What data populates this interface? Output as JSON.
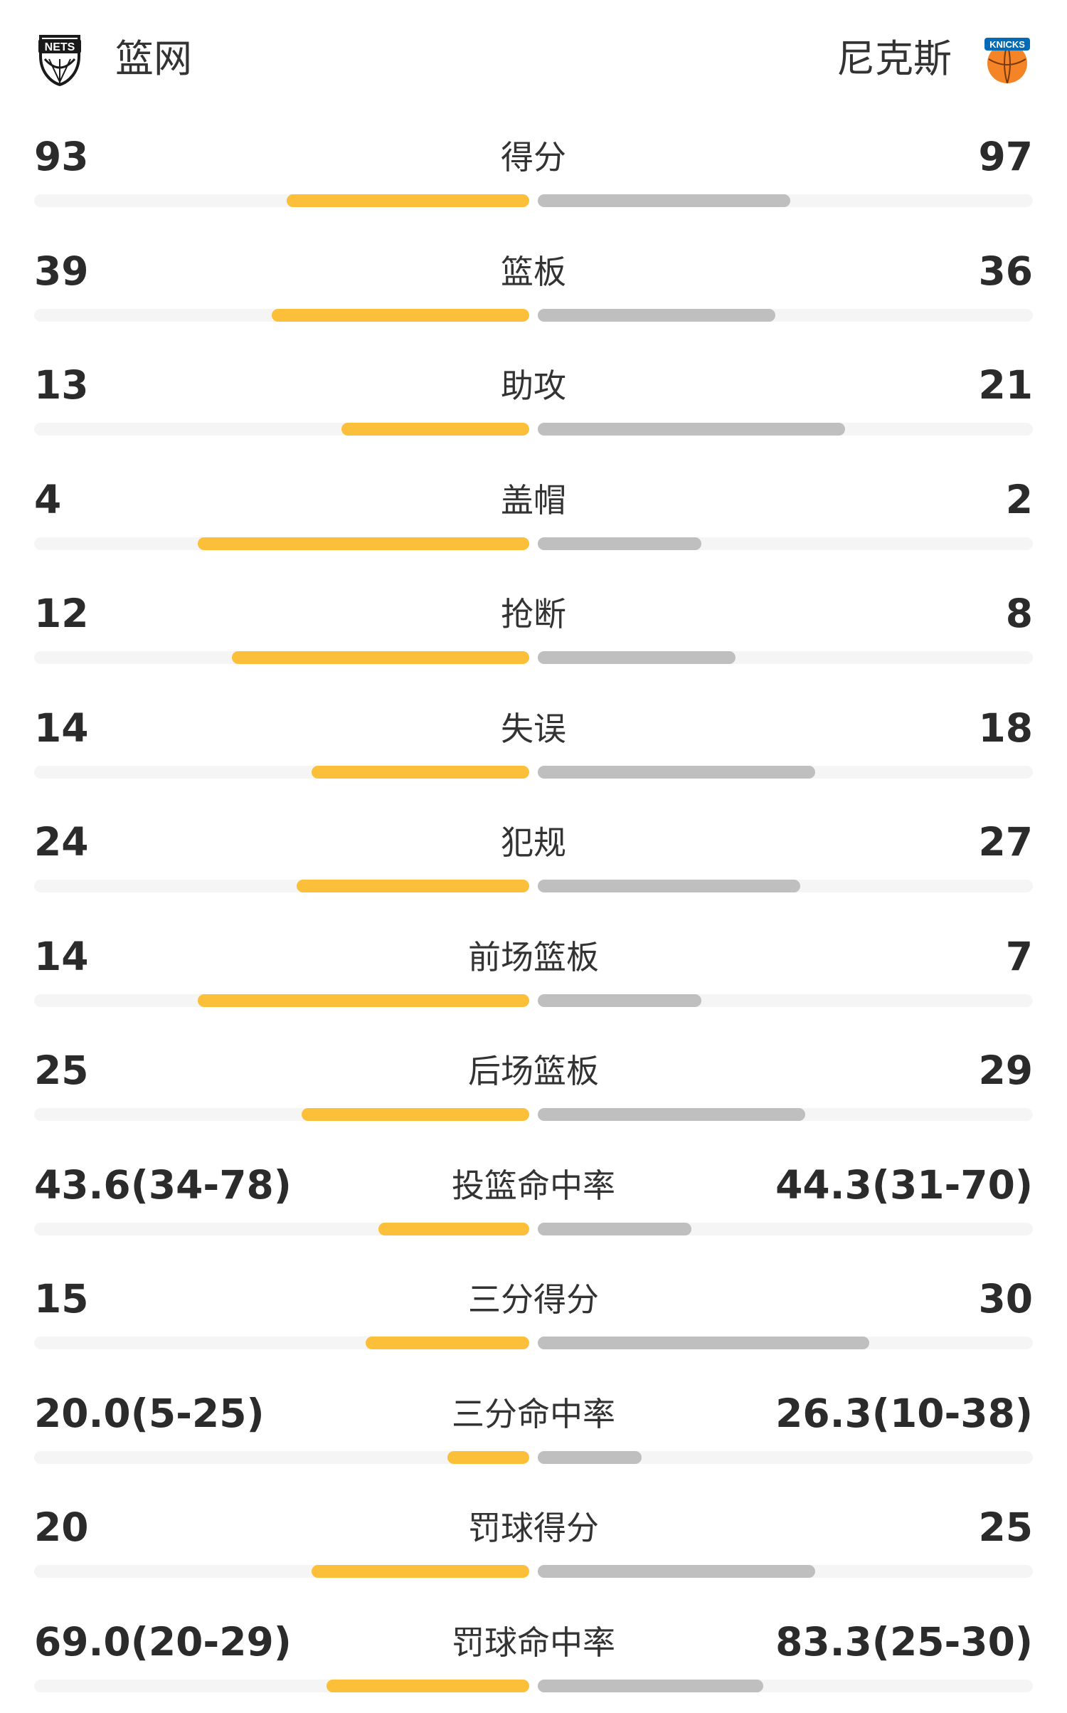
{
  "header": {
    "home_team": {
      "name": "篮网",
      "logo_icon": "nets-logo-icon",
      "logo_text": "NETS"
    },
    "away_team": {
      "name": "尼克斯",
      "logo_icon": "knicks-logo-icon",
      "logo_text": "KNICKS"
    }
  },
  "colors": {
    "home_bar": "#fbbf39",
    "away_bar": "#bfbfbf",
    "track": "#f5f5f5",
    "text": "#333333"
  },
  "stats": [
    {
      "label": "得分",
      "home": "93",
      "away": "97",
      "home_share": 0.49,
      "away_share": 0.51
    },
    {
      "label": "篮板",
      "home": "39",
      "away": "36",
      "home_share": 0.52,
      "away_share": 0.48
    },
    {
      "label": "助攻",
      "home": "13",
      "away": "21",
      "home_share": 0.38,
      "away_share": 0.62
    },
    {
      "label": "盖帽",
      "home": "4",
      "away": "2",
      "home_share": 0.67,
      "away_share": 0.33
    },
    {
      "label": "抢断",
      "home": "12",
      "away": "8",
      "home_share": 0.6,
      "away_share": 0.4
    },
    {
      "label": "失误",
      "home": "14",
      "away": "18",
      "home_share": 0.44,
      "away_share": 0.56
    },
    {
      "label": "犯规",
      "home": "24",
      "away": "27",
      "home_share": 0.47,
      "away_share": 0.53
    },
    {
      "label": "前场篮板",
      "home": "14",
      "away": "7",
      "home_share": 0.67,
      "away_share": 0.33
    },
    {
      "label": "后场篮板",
      "home": "25",
      "away": "29",
      "home_share": 0.46,
      "away_share": 0.54
    },
    {
      "label": "投篮命中率",
      "home": "43.6(34-78)",
      "away": "44.3(31-70)",
      "home_share": 0.305,
      "away_share": 0.31
    },
    {
      "label": "三分得分",
      "home": "15",
      "away": "30",
      "home_share": 0.33,
      "away_share": 0.67
    },
    {
      "label": "三分命中率",
      "home": "20.0(5-25)",
      "away": "26.3(10-38)",
      "home_share": 0.165,
      "away_share": 0.21
    },
    {
      "label": "罚球得分",
      "home": "20",
      "away": "25",
      "home_share": 0.44,
      "away_share": 0.56
    },
    {
      "label": "罚球命中率",
      "home": "69.0(20-29)",
      "away": "83.3(25-30)",
      "home_share": 0.41,
      "away_share": 0.455
    }
  ]
}
